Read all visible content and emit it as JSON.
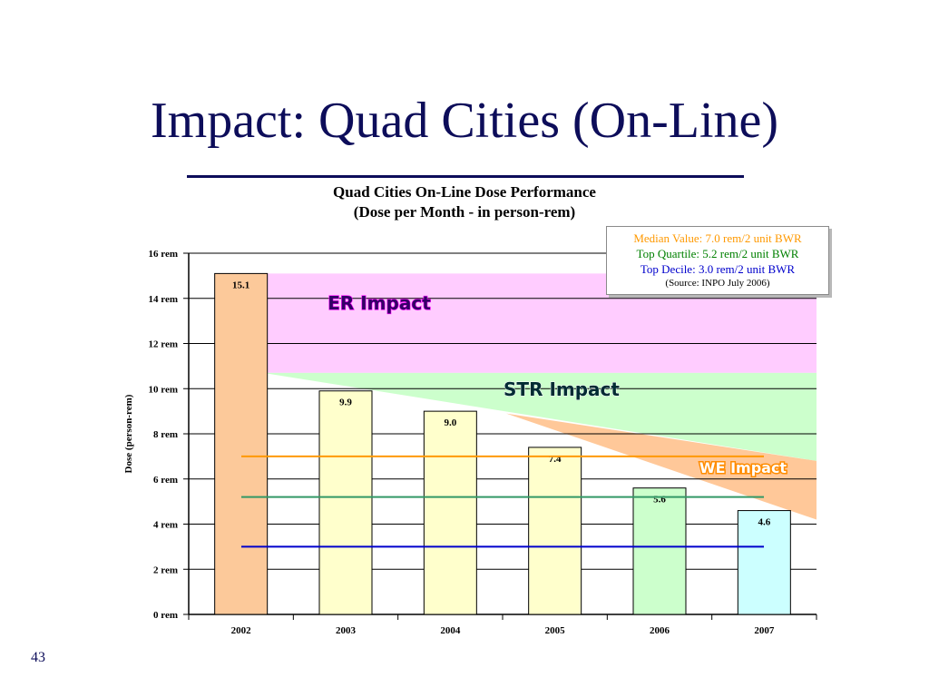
{
  "slide": {
    "title": "Impact: Quad Cities (On-Line)",
    "page_number": "43"
  },
  "legend_box": {
    "median": "Median Value: 7.0 rem/2 unit BWR",
    "quartile": "Top Quartile: 5.2 rem/2 unit BWR",
    "decile": "Top Decile: 3.0 rem/2 unit BWR",
    "source": "(Source: INPO July 2006)"
  },
  "chart_data": {
    "type": "bar",
    "title": "Quad Cities On-Line Dose Performance",
    "subtitle": "(Dose per Month - in person-rem)",
    "ylabel": "Dose (person-rem)",
    "xlabel": "",
    "categories": [
      "2002",
      "2003",
      "2004",
      "2005",
      "2006",
      "2007"
    ],
    "values": [
      15.1,
      9.9,
      9.0,
      7.4,
      5.6,
      4.6
    ],
    "data_labels": [
      "15.1",
      "9.9",
      "9.0",
      "7.4",
      "5.6",
      "4.6"
    ],
    "bar_colors": [
      "#fcc99a",
      "#ffffcc",
      "#ffffcc",
      "#ffffcc",
      "#ccffcc",
      "#ccffff"
    ],
    "ylim": [
      0,
      16
    ],
    "yticks": [
      0,
      2,
      4,
      6,
      8,
      10,
      12,
      14,
      16
    ],
    "ytick_labels": [
      "0 rem",
      "2 rem",
      "4 rem",
      "6 rem",
      "8 rem",
      "10 rem",
      "12 rem",
      "14 rem",
      "16 rem"
    ],
    "grid": true,
    "reference_lines": [
      {
        "label": "Median Value",
        "value": 7.0,
        "color": "#ff9900"
      },
      {
        "label": "Top Quartile",
        "value": 5.2,
        "color": "#339966"
      },
      {
        "label": "Top Decile",
        "value": 3.0,
        "color": "#0000cc"
      }
    ],
    "impact_bands": [
      {
        "label": "ER Impact",
        "color": "#ff00ff",
        "fill": "#ffccff"
      },
      {
        "label": "STR Impact",
        "color": "#ccffcc",
        "fill": "#ccffcc"
      },
      {
        "label": "WE Impact",
        "color": "#ff8c00",
        "fill": "#ffc899"
      }
    ],
    "colors": {
      "median_text": "#ff9900",
      "quartile_text": "#008000",
      "decile_text": "#0000cc",
      "er_text": "#330066",
      "str_text": "#002b33",
      "we_text": "#ffffff",
      "we_outline": "#ff8c00",
      "grid": "#000000",
      "bar_edge": "#000000"
    }
  }
}
